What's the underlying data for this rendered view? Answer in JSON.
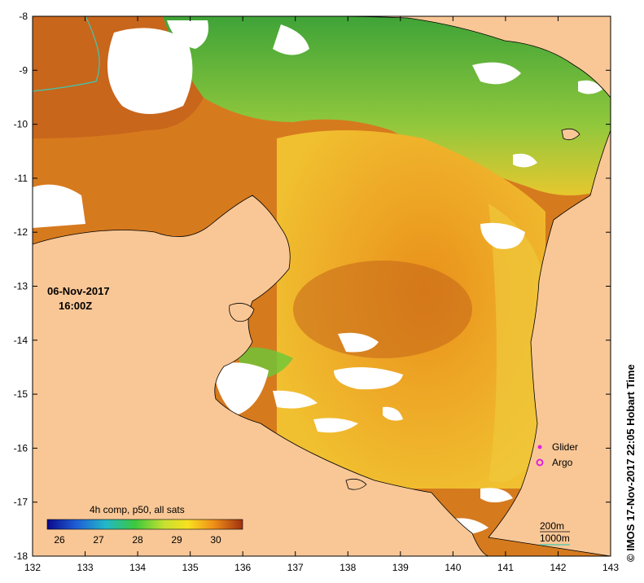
{
  "map": {
    "date": "06-Nov-2017",
    "time": "16:00Z",
    "composite_label": "4h comp, p50, all sats",
    "credit": "© IMOS 17-Nov-2017 22:05 Hobart Time",
    "x_ticks": [
      "132",
      "133",
      "134",
      "135",
      "136",
      "137",
      "138",
      "139",
      "140",
      "141",
      "142",
      "143"
    ],
    "y_ticks": [
      "-8",
      "-9",
      "-10",
      "-11",
      "-12",
      "-13",
      "-14",
      "-15",
      "-16",
      "-17",
      "-18"
    ],
    "colorbar_ticks": [
      "26",
      "27",
      "28",
      "29",
      "30"
    ],
    "legend": {
      "glider": "Glider",
      "argo": "Argo"
    },
    "contours": {
      "shallow": "200m",
      "deep": "1000m"
    },
    "colors": {
      "land": "#f9c796",
      "no_data": "#ffffff",
      "sst_warm": "#c85a0a",
      "sst_mid": "#f0a81e",
      "sst_cool": "#44c832",
      "contour": "#40c8b0",
      "marker": "#e020e0"
    }
  }
}
